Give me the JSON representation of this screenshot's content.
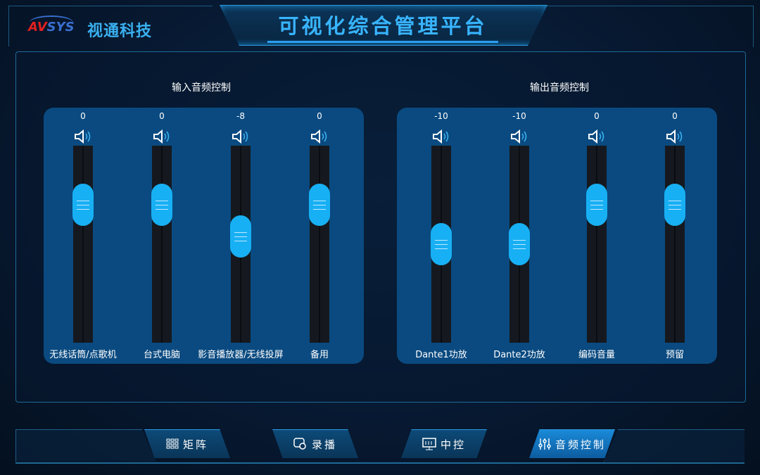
{
  "header": {
    "logo_av": "AV",
    "logo_sys": "SYS",
    "brand": "视通科技",
    "title": "可视化综合管理平台"
  },
  "input": {
    "title": "输入音频控制",
    "channels": [
      {
        "label": "无线话筒/点歌机",
        "value": 0
      },
      {
        "label": "台式电脑",
        "value": 0
      },
      {
        "label": "影音播放器/无线投屏",
        "value": -8
      },
      {
        "label": "备用",
        "value": 0
      }
    ]
  },
  "output": {
    "title": "输出音频控制",
    "channels": [
      {
        "label": "Dante1功放",
        "value": -10
      },
      {
        "label": "Dante2功放",
        "value": -10
      },
      {
        "label": "编码音量",
        "value": 0
      },
      {
        "label": "预留",
        "value": 0
      }
    ]
  },
  "nav": [
    {
      "label": "矩阵",
      "icon": "grid-icon",
      "active": false
    },
    {
      "label": "录播",
      "icon": "camera-icon",
      "active": false
    },
    {
      "label": "中控",
      "icon": "monitor-icon",
      "active": false
    },
    {
      "label": "音频控制",
      "icon": "sliders-icon",
      "active": true
    }
  ],
  "colors": {
    "accent": "#18b0f4",
    "panel": "#0a4a80",
    "title": "#38b4ff"
  }
}
